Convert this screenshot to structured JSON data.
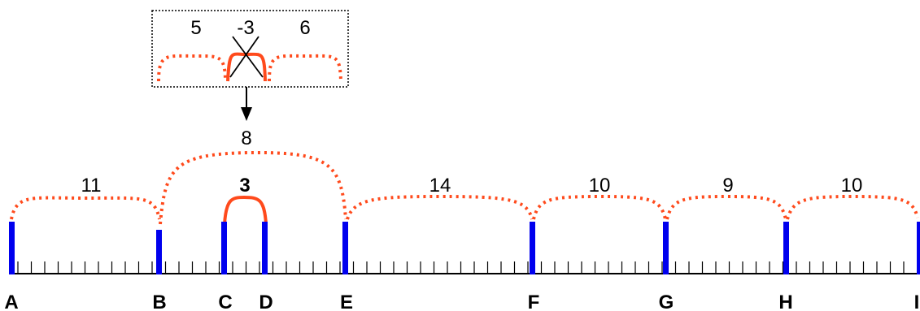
{
  "colors": {
    "marker": "#0000ee",
    "arc": "#ff4a1c",
    "line": "#000000",
    "inset_border": "#000000"
  },
  "inset": {
    "labels": [
      "5",
      "-3",
      "6"
    ],
    "crossed_label": "-3"
  },
  "ruler": {
    "letters": [
      "A",
      "B",
      "C",
      "D",
      "E",
      "F",
      "G",
      "H",
      "I"
    ],
    "spans": [
      {
        "from": "A",
        "to": "B",
        "label": "11",
        "style": "dotted"
      },
      {
        "from": "B",
        "to": "E",
        "label": "8",
        "style": "dotted"
      },
      {
        "from": "C",
        "to": "D",
        "label": "3",
        "style": "solid"
      },
      {
        "from": "E",
        "to": "F",
        "label": "14",
        "style": "dotted"
      },
      {
        "from": "F",
        "to": "G",
        "label": "10",
        "style": "dotted"
      },
      {
        "from": "G",
        "to": "H",
        "label": "9",
        "style": "dotted"
      },
      {
        "from": "H",
        "to": "I",
        "label": "10",
        "style": "dotted"
      }
    ]
  }
}
